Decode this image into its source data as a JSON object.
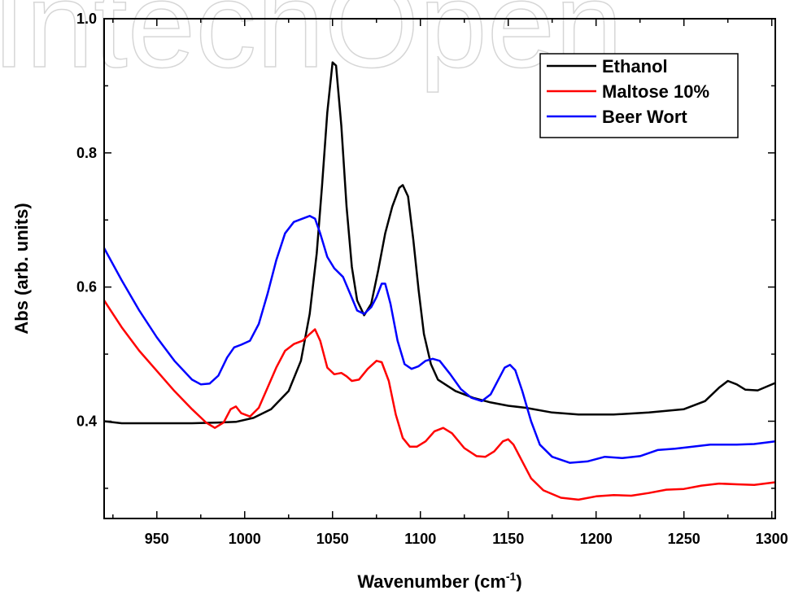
{
  "watermark": "IntechOpen",
  "chart_data": {
    "type": "line",
    "xlabel_main": "Wavenumber (cm",
    "xlabel_sup": "-1",
    "xlabel_end": ")",
    "ylabel": "Abs (arb. units)",
    "xlim": [
      920,
      1302
    ],
    "ylim": [
      0.255,
      1.0
    ],
    "xticks": [
      950,
      1000,
      1050,
      1100,
      1150,
      1200,
      1250,
      1300
    ],
    "yticks": [
      0.4,
      0.6,
      0.8,
      1.0
    ],
    "yticklabels": [
      "0.4",
      "0.6",
      "0.8",
      "1.0"
    ],
    "legend_position": "top-right",
    "grid": false,
    "series": [
      {
        "name": "Ethanol",
        "color": "#000000",
        "points": [
          [
            920,
            0.4
          ],
          [
            930,
            0.397
          ],
          [
            950,
            0.397
          ],
          [
            970,
            0.397
          ],
          [
            985,
            0.398
          ],
          [
            995,
            0.399
          ],
          [
            1005,
            0.405
          ],
          [
            1015,
            0.418
          ],
          [
            1025,
            0.445
          ],
          [
            1032,
            0.49
          ],
          [
            1037,
            0.56
          ],
          [
            1041,
            0.65
          ],
          [
            1044,
            0.75
          ],
          [
            1047,
            0.86
          ],
          [
            1050,
            0.935
          ],
          [
            1052,
            0.93
          ],
          [
            1055,
            0.84
          ],
          [
            1058,
            0.72
          ],
          [
            1061,
            0.63
          ],
          [
            1064,
            0.58
          ],
          [
            1068,
            0.558
          ],
          [
            1072,
            0.575
          ],
          [
            1076,
            0.625
          ],
          [
            1080,
            0.68
          ],
          [
            1084,
            0.72
          ],
          [
            1088,
            0.748
          ],
          [
            1090,
            0.752
          ],
          [
            1093,
            0.735
          ],
          [
            1096,
            0.67
          ],
          [
            1099,
            0.595
          ],
          [
            1102,
            0.53
          ],
          [
            1106,
            0.485
          ],
          [
            1110,
            0.462
          ],
          [
            1120,
            0.445
          ],
          [
            1130,
            0.435
          ],
          [
            1140,
            0.428
          ],
          [
            1150,
            0.423
          ],
          [
            1160,
            0.42
          ],
          [
            1175,
            0.413
          ],
          [
            1190,
            0.41
          ],
          [
            1210,
            0.41
          ],
          [
            1230,
            0.413
          ],
          [
            1250,
            0.418
          ],
          [
            1262,
            0.43
          ],
          [
            1270,
            0.45
          ],
          [
            1275,
            0.46
          ],
          [
            1280,
            0.455
          ],
          [
            1285,
            0.447
          ],
          [
            1292,
            0.446
          ],
          [
            1302,
            0.457
          ]
        ]
      },
      {
        "name": "Maltose 10%",
        "color": "#ff0000",
        "points": [
          [
            920,
            0.58
          ],
          [
            930,
            0.54
          ],
          [
            940,
            0.505
          ],
          [
            950,
            0.475
          ],
          [
            960,
            0.445
          ],
          [
            970,
            0.418
          ],
          [
            978,
            0.398
          ],
          [
            983,
            0.39
          ],
          [
            988,
            0.398
          ],
          [
            992,
            0.418
          ],
          [
            995,
            0.422
          ],
          [
            998,
            0.412
          ],
          [
            1003,
            0.407
          ],
          [
            1008,
            0.42
          ],
          [
            1013,
            0.45
          ],
          [
            1018,
            0.48
          ],
          [
            1023,
            0.505
          ],
          [
            1028,
            0.515
          ],
          [
            1033,
            0.52
          ],
          [
            1037,
            0.53
          ],
          [
            1040,
            0.537
          ],
          [
            1043,
            0.52
          ],
          [
            1047,
            0.48
          ],
          [
            1051,
            0.47
          ],
          [
            1055,
            0.472
          ],
          [
            1058,
            0.467
          ],
          [
            1061,
            0.46
          ],
          [
            1065,
            0.462
          ],
          [
            1070,
            0.478
          ],
          [
            1075,
            0.49
          ],
          [
            1078,
            0.488
          ],
          [
            1082,
            0.46
          ],
          [
            1086,
            0.41
          ],
          [
            1090,
            0.375
          ],
          [
            1094,
            0.362
          ],
          [
            1098,
            0.362
          ],
          [
            1103,
            0.37
          ],
          [
            1108,
            0.385
          ],
          [
            1113,
            0.39
          ],
          [
            1118,
            0.382
          ],
          [
            1125,
            0.36
          ],
          [
            1132,
            0.348
          ],
          [
            1137,
            0.347
          ],
          [
            1142,
            0.355
          ],
          [
            1147,
            0.37
          ],
          [
            1150,
            0.373
          ],
          [
            1153,
            0.365
          ],
          [
            1158,
            0.34
          ],
          [
            1163,
            0.315
          ],
          [
            1170,
            0.297
          ],
          [
            1180,
            0.286
          ],
          [
            1190,
            0.283
          ],
          [
            1200,
            0.288
          ],
          [
            1210,
            0.29
          ],
          [
            1220,
            0.289
          ],
          [
            1230,
            0.293
          ],
          [
            1240,
            0.298
          ],
          [
            1250,
            0.299
          ],
          [
            1260,
            0.304
          ],
          [
            1270,
            0.307
          ],
          [
            1280,
            0.306
          ],
          [
            1290,
            0.305
          ],
          [
            1302,
            0.309
          ]
        ]
      },
      {
        "name": "Beer Wort",
        "color": "#0000ff",
        "points": [
          [
            920,
            0.658
          ],
          [
            930,
            0.61
          ],
          [
            940,
            0.565
          ],
          [
            950,
            0.525
          ],
          [
            960,
            0.49
          ],
          [
            970,
            0.462
          ],
          [
            975,
            0.455
          ],
          [
            980,
            0.456
          ],
          [
            985,
            0.468
          ],
          [
            990,
            0.495
          ],
          [
            994,
            0.51
          ],
          [
            998,
            0.514
          ],
          [
            1003,
            0.52
          ],
          [
            1008,
            0.545
          ],
          [
            1013,
            0.59
          ],
          [
            1018,
            0.64
          ],
          [
            1023,
            0.68
          ],
          [
            1028,
            0.697
          ],
          [
            1033,
            0.702
          ],
          [
            1037,
            0.706
          ],
          [
            1040,
            0.702
          ],
          [
            1043,
            0.68
          ],
          [
            1047,
            0.645
          ],
          [
            1051,
            0.628
          ],
          [
            1056,
            0.615
          ],
          [
            1060,
            0.59
          ],
          [
            1064,
            0.565
          ],
          [
            1068,
            0.56
          ],
          [
            1072,
            0.57
          ],
          [
            1075,
            0.585
          ],
          [
            1078,
            0.605
          ],
          [
            1080,
            0.605
          ],
          [
            1083,
            0.575
          ],
          [
            1087,
            0.52
          ],
          [
            1091,
            0.485
          ],
          [
            1095,
            0.478
          ],
          [
            1099,
            0.482
          ],
          [
            1103,
            0.49
          ],
          [
            1107,
            0.493
          ],
          [
            1111,
            0.49
          ],
          [
            1117,
            0.47
          ],
          [
            1123,
            0.448
          ],
          [
            1129,
            0.435
          ],
          [
            1135,
            0.43
          ],
          [
            1140,
            0.44
          ],
          [
            1145,
            0.465
          ],
          [
            1148,
            0.48
          ],
          [
            1151,
            0.484
          ],
          [
            1154,
            0.476
          ],
          [
            1158,
            0.445
          ],
          [
            1163,
            0.4
          ],
          [
            1168,
            0.365
          ],
          [
            1175,
            0.347
          ],
          [
            1185,
            0.338
          ],
          [
            1195,
            0.34
          ],
          [
            1205,
            0.347
          ],
          [
            1215,
            0.345
          ],
          [
            1225,
            0.348
          ],
          [
            1235,
            0.357
          ],
          [
            1245,
            0.359
          ],
          [
            1255,
            0.362
          ],
          [
            1265,
            0.365
          ],
          [
            1280,
            0.365
          ],
          [
            1290,
            0.366
          ],
          [
            1302,
            0.37
          ]
        ]
      }
    ]
  }
}
